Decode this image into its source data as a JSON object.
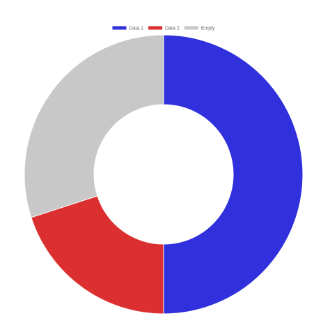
{
  "chart_data": {
    "type": "pie",
    "subtype": "doughnut",
    "legend_position": "top",
    "series": [
      {
        "name": "Data 1",
        "value": 50,
        "color": "#3030DC"
      },
      {
        "name": "Data 2",
        "value": 20,
        "color": "#DC3030"
      },
      {
        "name": "Empty",
        "value": 30,
        "color": "#C8C8C8"
      }
    ]
  }
}
